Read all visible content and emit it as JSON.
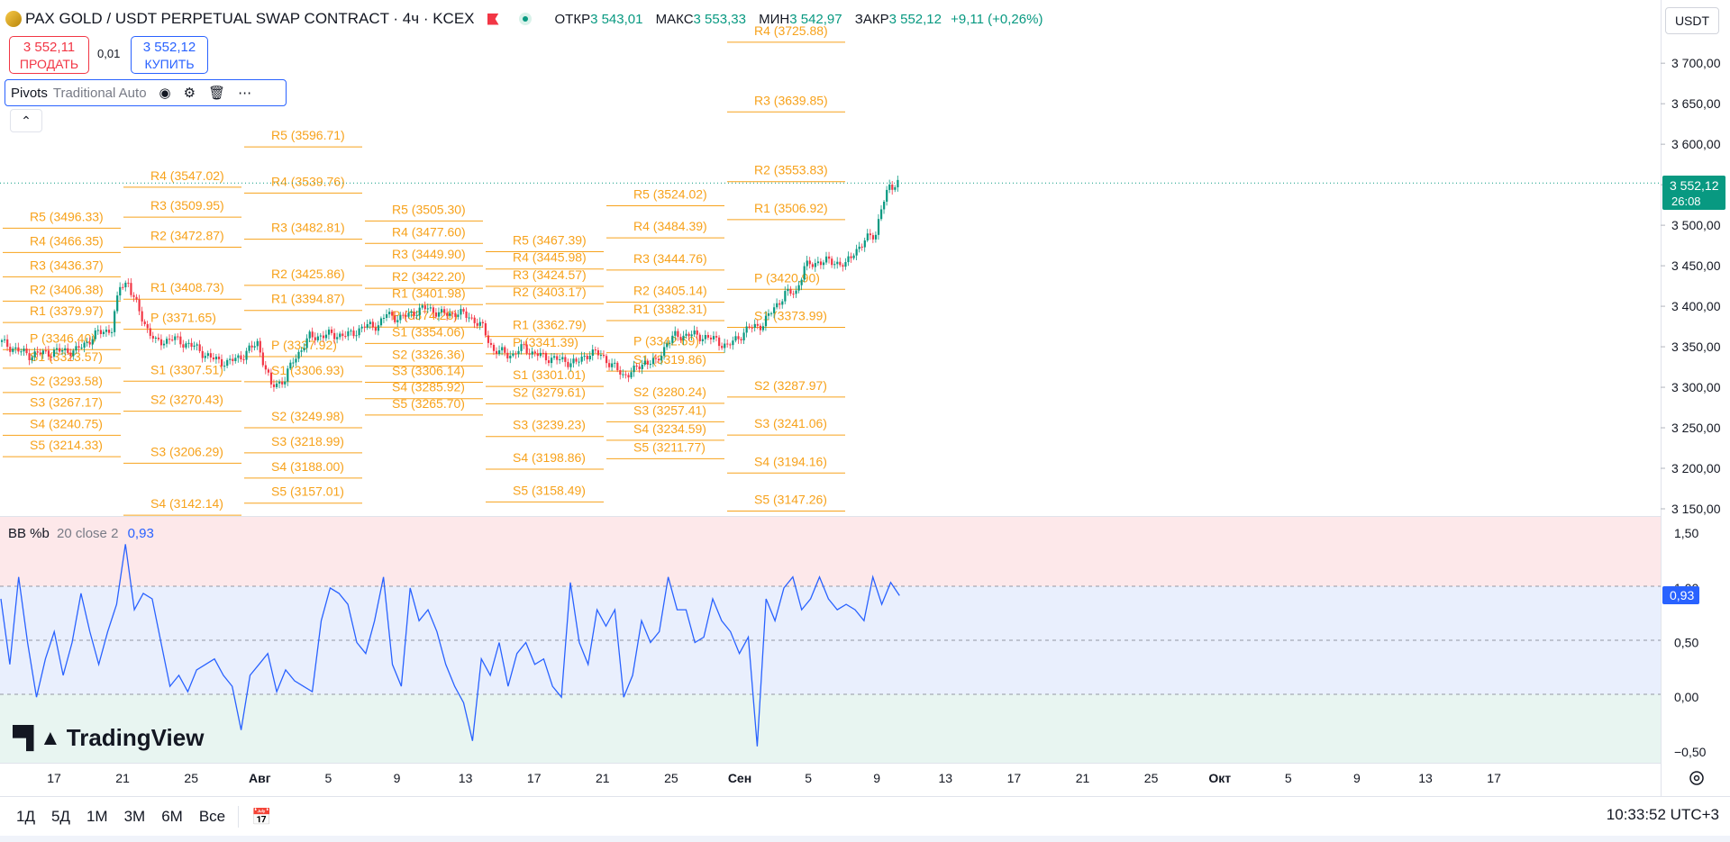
{
  "header": {
    "symbol": "PAX GOLD / USDT PERPETUAL SWAP CONTRACT · 4ч · KCEX",
    "open_label": "ОТКР",
    "open": "3 543,01",
    "high_label": "МАКС",
    "high": "3 553,33",
    "low_label": "МИН",
    "low": "3 542,97",
    "close_label": "ЗАКР",
    "close": "3 552,12",
    "change": "+9,11 (+0,26%)",
    "currency": "USDT"
  },
  "trade": {
    "sell_price": "3 552,11",
    "sell_label": "ПРОДАТЬ",
    "spread": "0,01",
    "buy_price": "3 552,12",
    "buy_label": "КУПИТЬ"
  },
  "indicator": {
    "name": "Pivots",
    "args": "Traditional Auto"
  },
  "bb": {
    "name": "BB %b",
    "args": "20 close 2",
    "value": "0,93"
  },
  "price_badge": {
    "price": "3 552,12",
    "countdown": "26:08"
  },
  "bb_badge": "0,93",
  "logo": "TradingView",
  "toolbar": {
    "ranges": [
      "1Д",
      "5Д",
      "1М",
      "3М",
      "6М",
      "Все"
    ],
    "time": "10:33:52 UTC+3"
  },
  "colors": {
    "up": "#089981",
    "down": "#f23645",
    "pivot": "#f7a21b",
    "bb_line": "#2962ff",
    "accent": "#2962ff"
  },
  "chart_data": [
    {
      "type": "candlestick",
      "title": "PAX GOLD / USDT PERPETUAL SWAP CONTRACT · 4ч · KCEX",
      "y_ticks": [
        "3 700,00",
        "3 650,00",
        "3 600,00",
        "3 550,00",
        "3 500,00",
        "3 450,00",
        "3 400,00",
        "3 350,00",
        "3 300,00",
        "3 250,00",
        "3 200,00",
        "3 150,00"
      ],
      "y_tick_values": [
        3700,
        3650,
        3600,
        3550,
        3500,
        3450,
        3400,
        3350,
        3300,
        3250,
        3200,
        3150
      ],
      "ylim": [
        3140,
        3738
      ],
      "x_ticks": [
        "17",
        "21",
        "25",
        "Авг",
        "5",
        "9",
        "13",
        "17",
        "21",
        "25",
        "Сен",
        "5",
        "9",
        "13",
        "17",
        "21",
        "25",
        "Окт",
        "5",
        "9",
        "13",
        "17"
      ],
      "last_price": 3552.12,
      "trend_points": [
        [
          0,
          3355
        ],
        [
          6,
          3345
        ],
        [
          10,
          3340
        ],
        [
          17,
          3343
        ],
        [
          22,
          3345
        ],
        [
          27,
          3345
        ],
        [
          35,
          3367
        ],
        [
          40,
          3372
        ],
        [
          43,
          3425
        ],
        [
          46,
          3430
        ],
        [
          47,
          3418
        ],
        [
          50,
          3393
        ],
        [
          53,
          3372
        ],
        [
          56,
          3355
        ],
        [
          62,
          3360
        ],
        [
          70,
          3350
        ],
        [
          76,
          3336
        ],
        [
          82,
          3330
        ],
        [
          88,
          3340
        ],
        [
          93,
          3355
        ],
        [
          98,
          3301
        ],
        [
          103,
          3310
        ],
        [
          106,
          3333
        ],
        [
          112,
          3362
        ],
        [
          120,
          3365
        ],
        [
          126,
          3364
        ],
        [
          132,
          3375
        ],
        [
          137,
          3377
        ],
        [
          140,
          3390
        ],
        [
          145,
          3385
        ],
        [
          150,
          3393
        ],
        [
          155,
          3398
        ],
        [
          160,
          3390
        ],
        [
          165,
          3392
        ],
        [
          170,
          3388
        ],
        [
          175,
          3373
        ],
        [
          179,
          3345
        ],
        [
          186,
          3340
        ],
        [
          190,
          3350
        ],
        [
          193,
          3342
        ],
        [
          198,
          3337
        ],
        [
          204,
          3333
        ],
        [
          209,
          3330
        ],
        [
          214,
          3343
        ],
        [
          218,
          3340
        ],
        [
          222,
          3327
        ],
        [
          226,
          3315
        ],
        [
          230,
          3320
        ],
        [
          234,
          3332
        ],
        [
          238,
          3330
        ],
        [
          242,
          3355
        ],
        [
          245,
          3363
        ],
        [
          250,
          3365
        ],
        [
          256,
          3362
        ],
        [
          260,
          3358
        ],
        [
          264,
          3350
        ],
        [
          268,
          3362
        ],
        [
          272,
          3373
        ],
        [
          277,
          3378
        ],
        [
          281,
          3398
        ],
        [
          285,
          3415
        ],
        [
          289,
          3418
        ],
        [
          292,
          3448
        ],
        [
          297,
          3455
        ],
        [
          303,
          3455
        ],
        [
          307,
          3450
        ],
        [
          310,
          3468
        ],
        [
          313,
          3475
        ],
        [
          316,
          3488
        ],
        [
          318,
          3490
        ],
        [
          320,
          3520
        ],
        [
          323,
          3548
        ],
        [
          326,
          3553
        ]
      ],
      "pivot_periods": [
        {
          "levels": [
            [
              "R5",
              "3496.33"
            ],
            [
              "R4",
              "3466.35"
            ],
            [
              "R3",
              "3436.37"
            ],
            [
              "R2",
              "3406.38"
            ],
            [
              "R1",
              "3379.97"
            ],
            [
              "P",
              "3346.40"
            ],
            [
              "S1",
              "3323.57"
            ],
            [
              "S2",
              "3293.58"
            ],
            [
              "S3",
              "3267.17"
            ],
            [
              "S4",
              "3240.75"
            ],
            [
              "S5",
              "3214.33"
            ]
          ]
        },
        {
          "levels": [
            [
              "R4",
              "3547.02"
            ],
            [
              "R3",
              "3509.95"
            ],
            [
              "R2",
              "3472.87"
            ],
            [
              "R1",
              "3408.73"
            ],
            [
              "P",
              "3371.65"
            ],
            [
              "S1",
              "3307.51"
            ],
            [
              "S2",
              "3270.43"
            ],
            [
              "S3",
              "3206.29"
            ],
            [
              "S4",
              "3142.14"
            ]
          ]
        },
        {
          "levels": [
            [
              "R5",
              "3596.71"
            ],
            [
              "R4",
              "3539.76"
            ],
            [
              "R3",
              "3482.81"
            ],
            [
              "R2",
              "3425.86"
            ],
            [
              "R1",
              "3394.87"
            ],
            [
              "P",
              "3337.92"
            ],
            [
              "S1",
              "3306.93"
            ],
            [
              "S2",
              "3249.98"
            ],
            [
              "S3",
              "3218.99"
            ],
            [
              "S4",
              "3188.00"
            ],
            [
              "S5",
              "3157.01"
            ]
          ]
        },
        {
          "levels": [
            [
              "R5",
              "3505.30"
            ],
            [
              "R4",
              "3477.60"
            ],
            [
              "R3",
              "3449.90"
            ],
            [
              "R2",
              "3422.20"
            ],
            [
              "R1",
              "3401.98"
            ],
            [
              "P",
              "3374.28"
            ],
            [
              "S1",
              "3354.06"
            ],
            [
              "S2",
              "3326.36"
            ],
            [
              "S3",
              "3306.14"
            ],
            [
              "S4",
              "3285.92"
            ],
            [
              "S5",
              "3265.70"
            ]
          ]
        },
        {
          "levels": [
            [
              "R5",
              "3467.39"
            ],
            [
              "R4",
              "3445.98"
            ],
            [
              "R3",
              "3424.57"
            ],
            [
              "R2",
              "3403.17"
            ],
            [
              "R1",
              "3362.79"
            ],
            [
              "P",
              "3341.39"
            ],
            [
              "S1",
              "3301.01"
            ],
            [
              "S2",
              "3279.61"
            ],
            [
              "S3",
              "3239.23"
            ],
            [
              "S4",
              "3198.86"
            ],
            [
              "S5",
              "3158.49"
            ]
          ]
        },
        {
          "levels": [
            [
              "R5",
              "3524.02"
            ],
            [
              "R4",
              "3484.39"
            ],
            [
              "R3",
              "3444.76"
            ],
            [
              "R2",
              "3405.14"
            ],
            [
              "R1",
              "3382.31"
            ],
            [
              "P",
              "3342.69"
            ],
            [
              "S1",
              "3319.86"
            ],
            [
              "S2",
              "3280.24"
            ],
            [
              "S3",
              "3257.41"
            ],
            [
              "S4",
              "3234.59"
            ],
            [
              "S5",
              "3211.77"
            ]
          ]
        },
        {
          "levels": [
            [
              "R4",
              "3725.88"
            ],
            [
              "R3",
              "3639.85"
            ],
            [
              "R2",
              "3553.83"
            ],
            [
              "R1",
              "3506.92"
            ],
            [
              "P",
              "3420.90"
            ],
            [
              "S1",
              "3373.99"
            ],
            [
              "S2",
              "3287.97"
            ],
            [
              "S3",
              "3241.06"
            ],
            [
              "S4",
              "3194.16"
            ],
            [
              "S5",
              "3147.26"
            ]
          ]
        }
      ]
    },
    {
      "type": "line",
      "title": "BB %b 20 close 2",
      "y_ticks": [
        "1,50",
        "1,00",
        "0,50",
        "0,00",
        "−0,50"
      ],
      "y_tick_values": [
        1.5,
        1.0,
        0.5,
        0.0,
        -0.5
      ],
      "ylim": [
        -0.6,
        1.65
      ],
      "last_value": 0.93,
      "series": [
        {
          "values": [
            0.9,
            0.3,
            1.1,
            0.5,
            0.0,
            0.35,
            0.6,
            0.2,
            0.5,
            0.95,
            0.6,
            0.3,
            0.6,
            0.85,
            1.4,
            0.8,
            0.95,
            0.9,
            0.5,
            0.1,
            0.2,
            0.05,
            0.25,
            0.3,
            0.35,
            0.2,
            0.1,
            -0.3,
            0.2,
            0.3,
            0.4,
            0.05,
            0.25,
            0.15,
            0.1,
            0.05,
            0.7,
            1.0,
            0.95,
            0.85,
            0.5,
            0.4,
            0.7,
            1.1,
            0.3,
            0.1,
            1.0,
            0.7,
            0.8,
            0.6,
            0.3,
            0.1,
            -0.05,
            -0.4,
            0.35,
            0.2,
            0.5,
            0.1,
            0.4,
            0.5,
            0.3,
            0.35,
            0.1,
            0.0,
            1.05,
            0.5,
            0.3,
            0.8,
            0.65,
            0.8,
            0.0,
            0.2,
            0.7,
            0.5,
            0.6,
            1.1,
            0.8,
            0.8,
            0.5,
            0.55,
            0.9,
            0.7,
            0.6,
            0.4,
            0.55,
            -0.45,
            0.9,
            0.7,
            1.0,
            1.1,
            0.8,
            0.9,
            1.1,
            0.9,
            0.8,
            0.85,
            0.8,
            0.7,
            1.1,
            0.85,
            1.05,
            0.93
          ]
        }
      ]
    }
  ]
}
